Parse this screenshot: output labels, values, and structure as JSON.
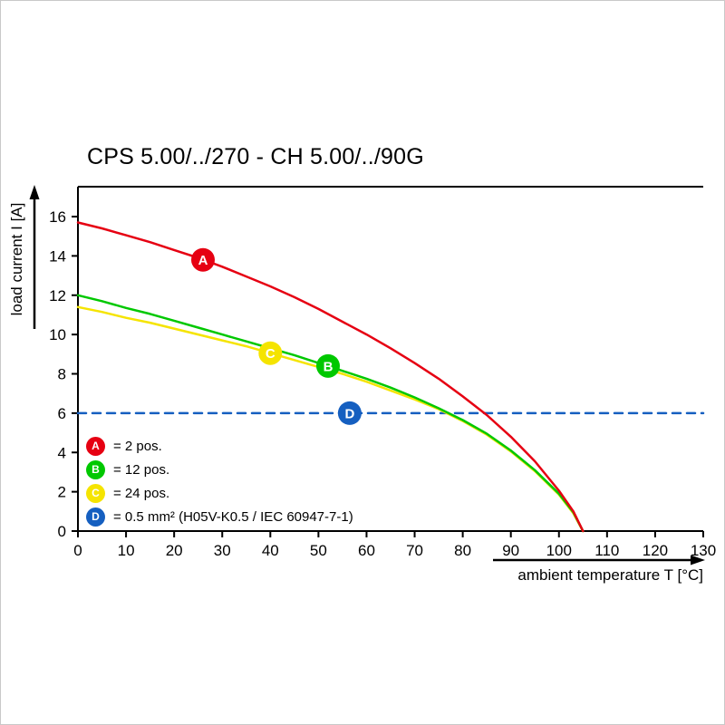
{
  "title": "CPS 5.00/../270 - CH 5.00/../90G",
  "chart_data": {
    "type": "line",
    "title": "CPS 5.00/../270 - CH 5.00/../90G",
    "xlabel": "ambient temperature T [°C]",
    "ylabel": "load current I [A]",
    "xlim": [
      0,
      130
    ],
    "ylim": [
      0,
      16
    ],
    "x_ticks": [
      0,
      10,
      20,
      30,
      40,
      50,
      60,
      70,
      80,
      90,
      100,
      110,
      120,
      130
    ],
    "y_ticks": [
      0,
      2,
      4,
      6,
      8,
      10,
      12,
      14,
      16
    ],
    "grid": false,
    "legend_position": "bottom-left-inside",
    "series": [
      {
        "name": "A",
        "label": "= 2 pos.",
        "color": "#e60012",
        "style": "solid",
        "marker_at": [
          26,
          13.8
        ],
        "points": [
          [
            0,
            15.7
          ],
          [
            5,
            15.4
          ],
          [
            10,
            15.05
          ],
          [
            15,
            14.7
          ],
          [
            20,
            14.3
          ],
          [
            25,
            13.9
          ],
          [
            30,
            13.45
          ],
          [
            35,
            12.95
          ],
          [
            40,
            12.45
          ],
          [
            45,
            11.9
          ],
          [
            50,
            11.3
          ],
          [
            55,
            10.65
          ],
          [
            60,
            10.0
          ],
          [
            65,
            9.3
          ],
          [
            70,
            8.55
          ],
          [
            75,
            7.75
          ],
          [
            80,
            6.85
          ],
          [
            85,
            5.9
          ],
          [
            90,
            4.8
          ],
          [
            95,
            3.55
          ],
          [
            100,
            2.05
          ],
          [
            103,
            1.0
          ],
          [
            105,
            0
          ]
        ]
      },
      {
        "name": "B",
        "label": "= 12 pos.",
        "color": "#00c800",
        "style": "solid",
        "marker_at": [
          52,
          8.4
        ],
        "points": [
          [
            0,
            12.0
          ],
          [
            5,
            11.7
          ],
          [
            10,
            11.35
          ],
          [
            15,
            11.05
          ],
          [
            20,
            10.7
          ],
          [
            25,
            10.35
          ],
          [
            30,
            10.0
          ],
          [
            35,
            9.65
          ],
          [
            40,
            9.3
          ],
          [
            45,
            8.95
          ],
          [
            50,
            8.55
          ],
          [
            55,
            8.15
          ],
          [
            60,
            7.75
          ],
          [
            65,
            7.3
          ],
          [
            70,
            6.8
          ],
          [
            75,
            6.25
          ],
          [
            80,
            5.65
          ],
          [
            85,
            4.95
          ],
          [
            90,
            4.1
          ],
          [
            95,
            3.1
          ],
          [
            100,
            1.9
          ],
          [
            103,
            0.95
          ],
          [
            105,
            0
          ]
        ]
      },
      {
        "name": "C",
        "label": "= 24 pos.",
        "color": "#f5e400",
        "style": "solid",
        "marker_at": [
          40,
          9.05
        ],
        "points": [
          [
            0,
            11.4
          ],
          [
            5,
            11.15
          ],
          [
            10,
            10.85
          ],
          [
            15,
            10.6
          ],
          [
            20,
            10.3
          ],
          [
            25,
            10.0
          ],
          [
            30,
            9.7
          ],
          [
            35,
            9.4
          ],
          [
            40,
            9.05
          ],
          [
            45,
            8.7
          ],
          [
            50,
            8.35
          ],
          [
            55,
            8.0
          ],
          [
            60,
            7.6
          ],
          [
            65,
            7.15
          ],
          [
            70,
            6.7
          ],
          [
            75,
            6.2
          ],
          [
            80,
            5.6
          ],
          [
            85,
            4.9
          ],
          [
            90,
            4.05
          ],
          [
            95,
            3.05
          ],
          [
            100,
            1.85
          ],
          [
            103,
            0.9
          ],
          [
            105,
            0
          ]
        ]
      },
      {
        "name": "D",
        "label": "= 0.5 mm² (H05V-K0.5 / IEC 60947-7-1)",
        "color": "#155fc0",
        "style": "dashed",
        "marker_at": [
          56.5,
          6
        ],
        "points": [
          [
            0,
            6
          ],
          [
            130,
            6
          ]
        ]
      }
    ]
  }
}
